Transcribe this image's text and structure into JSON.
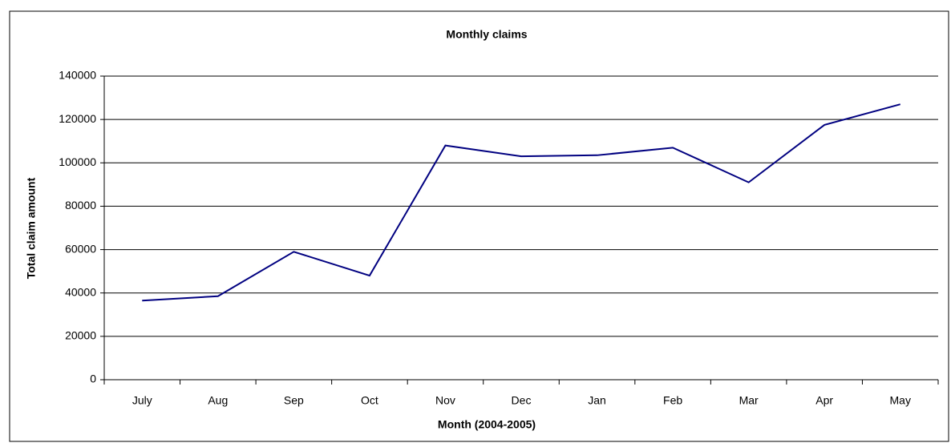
{
  "chart_data": {
    "type": "line",
    "title": "Monthly claims",
    "x_label": "Month (2004-2005)",
    "y_label": "Total claim amount",
    "categories": [
      "July",
      "Aug",
      "Sep",
      "Oct",
      "Nov",
      "Dec",
      "Jan",
      "Feb",
      "Mar",
      "Apr",
      "May"
    ],
    "values": [
      36500,
      38500,
      59000,
      48000,
      108000,
      103000,
      103500,
      107000,
      91000,
      117500,
      127000
    ],
    "color": "#000080",
    "ylim": [
      0,
      140000
    ],
    "yticks": [
      0,
      20000,
      40000,
      60000,
      80000,
      100000,
      120000,
      140000
    ],
    "grid": true
  }
}
